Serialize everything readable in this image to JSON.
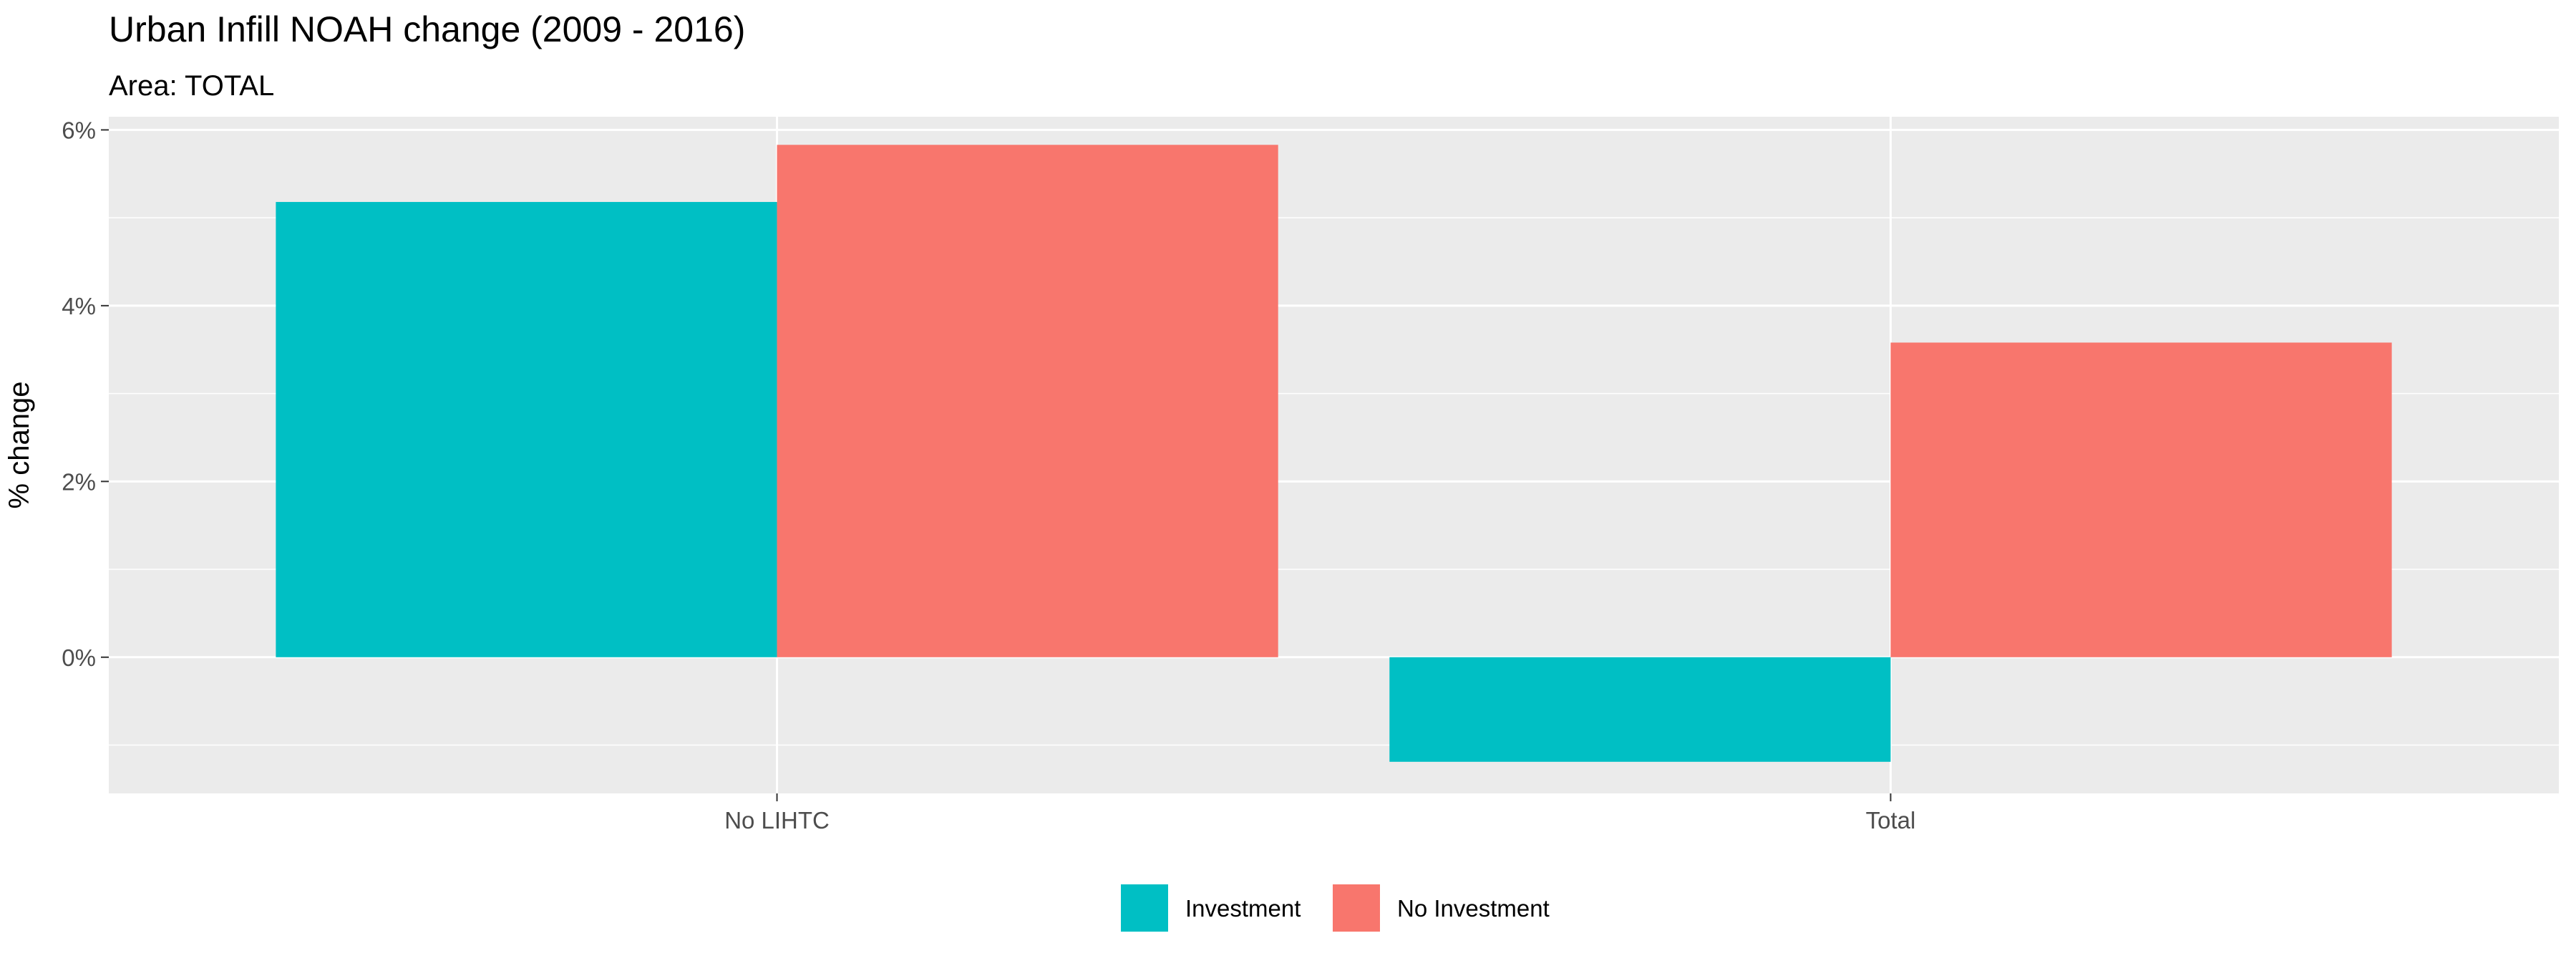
{
  "chart_data": {
    "type": "bar",
    "title": "Urban Infill NOAH change (2009 - 2016)",
    "subtitle": "Area: TOTAL",
    "xlabel": "",
    "ylabel": "% change",
    "categories": [
      "No LIHTC",
      "Total"
    ],
    "series": [
      {
        "name": "Investment",
        "color": "#00BFC4",
        "values": [
          5.18,
          -1.19
        ]
      },
      {
        "name": "No Investment",
        "color": "#F8766D",
        "values": [
          5.83,
          3.58
        ]
      }
    ],
    "ylim": [
      -1.55,
      6.15
    ],
    "yticks": [
      0,
      2,
      4,
      6
    ],
    "ytick_labels": [
      "0%",
      "2%",
      "4%",
      "6%"
    ],
    "grid": true,
    "legend_position": "bottom",
    "colors": {
      "panel": "#EBEBEB",
      "grid": "#FFFFFF",
      "text": "#000000",
      "axis_text": "#4D4D4D"
    }
  }
}
